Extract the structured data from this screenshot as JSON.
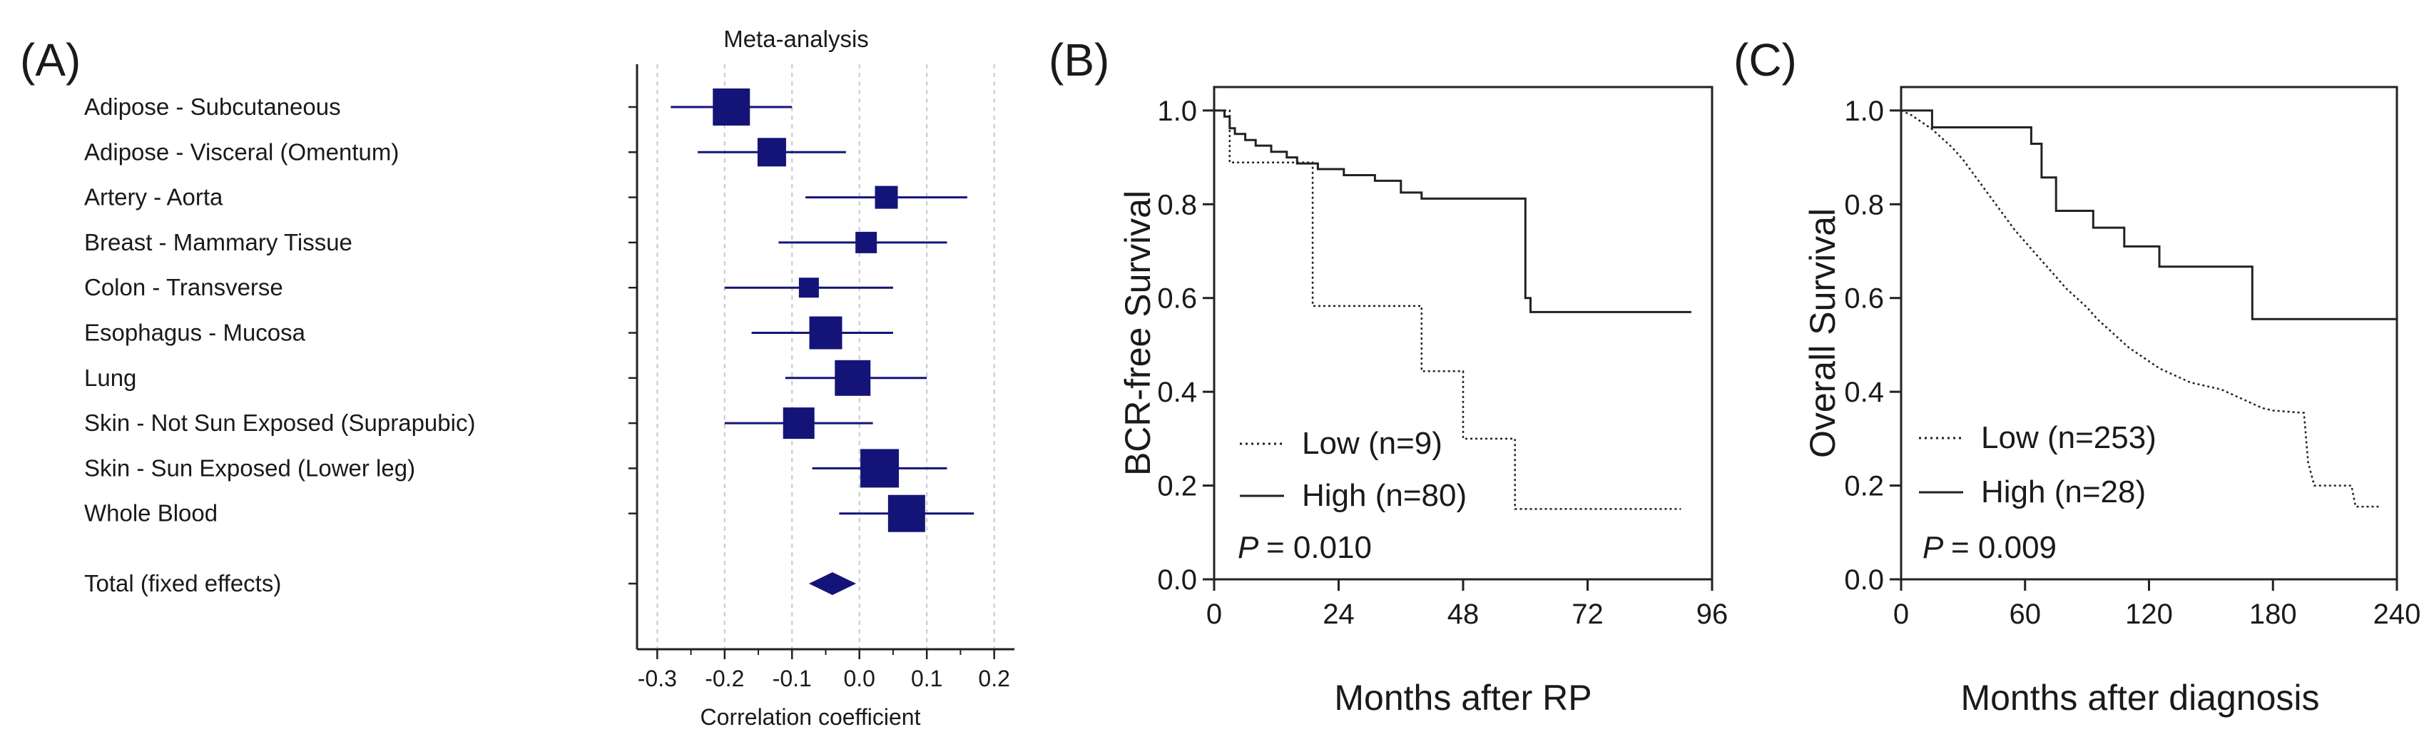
{
  "panels": {
    "a": "(A)",
    "b": "(B)",
    "c": "(C)"
  },
  "chart_data": [
    {
      "type": "forest",
      "title": "Meta-analysis",
      "xlabel": "Correlation coefficient",
      "xlim": [
        -0.33,
        0.23
      ],
      "xticks": [
        -0.3,
        -0.2,
        -0.1,
        0.0,
        0.1,
        0.2
      ],
      "xtick_labels": [
        "-0.3",
        "-0.2",
        "-0.1",
        "0.0",
        "0.1",
        "0.2"
      ],
      "gridlines": [
        -0.3,
        -0.2,
        -0.1,
        0.0,
        0.1,
        0.2
      ],
      "marker_color": "#141478",
      "rows": [
        {
          "label": "Adipose - Subcutaneous",
          "estimate": -0.19,
          "ci": [
            -0.28,
            -0.1
          ],
          "weight": 1.9
        },
        {
          "label": "Adipose - Visceral (Omentum)",
          "estimate": -0.13,
          "ci": [
            -0.24,
            -0.02
          ],
          "weight": 1.3
        },
        {
          "label": "Artery - Aorta",
          "estimate": 0.04,
          "ci": [
            -0.08,
            0.16
          ],
          "weight": 0.9
        },
        {
          "label": "Breast - Mammary Tissue",
          "estimate": 0.01,
          "ci": [
            -0.12,
            0.13
          ],
          "weight": 0.8
        },
        {
          "label": "Colon - Transverse",
          "estimate": -0.075,
          "ci": [
            -0.2,
            0.05
          ],
          "weight": 0.7
        },
        {
          "label": "Esophagus - Mucosa",
          "estimate": -0.05,
          "ci": [
            -0.16,
            0.05
          ],
          "weight": 1.6
        },
        {
          "label": "Lung",
          "estimate": -0.01,
          "ci": [
            -0.11,
            0.1
          ],
          "weight": 1.8
        },
        {
          "label": "Skin - Not Sun Exposed (Suprapubic)",
          "estimate": -0.09,
          "ci": [
            -0.2,
            0.02
          ],
          "weight": 1.5
        },
        {
          "label": "Skin - Sun Exposed (Lower leg)",
          "estimate": 0.03,
          "ci": [
            -0.07,
            0.13
          ],
          "weight": 2.0
        },
        {
          "label": "Whole Blood",
          "estimate": 0.07,
          "ci": [
            -0.03,
            0.17
          ],
          "weight": 1.9
        }
      ],
      "total": {
        "label": "Total (fixed effects)",
        "estimate": -0.04,
        "ci": [
          -0.075,
          -0.005
        ]
      }
    },
    {
      "type": "kaplan-meier",
      "xlabel": "Months after RP",
      "ylabel": "BCR-free Survival",
      "xlim": [
        0,
        96
      ],
      "ylim": [
        0,
        1.05
      ],
      "xticks": [
        0,
        24,
        48,
        72,
        96
      ],
      "xtick_labels": [
        "0",
        "24",
        "48",
        "72",
        "96"
      ],
      "yticks": [
        0,
        0.2,
        0.4,
        0.6,
        0.8,
        1.0
      ],
      "ytick_labels": [
        "0.0",
        "0.2",
        "0.4",
        "0.6",
        "0.8",
        "1.0"
      ],
      "series": [
        {
          "name": "Low (n=9)",
          "style": "dotted",
          "steps": [
            [
              0,
              1.0
            ],
            [
              3,
              1.0
            ],
            [
              3,
              0.889
            ],
            [
              19,
              0.889
            ],
            [
              19,
              0.583
            ],
            [
              40,
              0.583
            ],
            [
              40,
              0.444
            ],
            [
              48,
              0.444
            ],
            [
              48,
              0.3
            ],
            [
              58,
              0.3
            ],
            [
              58,
              0.15
            ],
            [
              90,
              0.15
            ]
          ]
        },
        {
          "name": "High (n=80)",
          "style": "solid",
          "steps": [
            [
              0,
              1.0
            ],
            [
              2,
              1.0
            ],
            [
              2,
              0.987
            ],
            [
              3,
              0.987
            ],
            [
              3,
              0.962
            ],
            [
              4,
              0.962
            ],
            [
              4,
              0.95
            ],
            [
              6,
              0.95
            ],
            [
              6,
              0.937
            ],
            [
              8,
              0.937
            ],
            [
              8,
              0.925
            ],
            [
              11,
              0.925
            ],
            [
              11,
              0.912
            ],
            [
              14,
              0.912
            ],
            [
              14,
              0.9
            ],
            [
              16,
              0.9
            ],
            [
              16,
              0.887
            ],
            [
              20,
              0.887
            ],
            [
              20,
              0.875
            ],
            [
              25,
              0.875
            ],
            [
              25,
              0.862
            ],
            [
              31,
              0.862
            ],
            [
              31,
              0.85
            ],
            [
              36,
              0.85
            ],
            [
              36,
              0.825
            ],
            [
              40,
              0.825
            ],
            [
              40,
              0.812
            ],
            [
              60,
              0.812
            ],
            [
              60,
              0.6
            ],
            [
              61,
              0.6
            ],
            [
              61,
              0.57
            ],
            [
              92,
              0.57
            ]
          ]
        }
      ],
      "annotation": {
        "p_label": "P",
        "p_value": "= 0.010"
      }
    },
    {
      "type": "kaplan-meier",
      "xlabel": "Months after diagnosis",
      "ylabel": "Overall Survival",
      "xlim": [
        0,
        240
      ],
      "ylim": [
        0,
        1.05
      ],
      "xticks": [
        0,
        60,
        120,
        180,
        240
      ],
      "xtick_labels": [
        "0",
        "60",
        "120",
        "180",
        "240"
      ],
      "yticks": [
        0,
        0.2,
        0.4,
        0.6,
        0.8,
        1.0
      ],
      "ytick_labels": [
        "0.0",
        "0.2",
        "0.4",
        "0.6",
        "0.8",
        "1.0"
      ],
      "series": [
        {
          "name": "Low (n=253)",
          "style": "dotted",
          "points": [
            [
              0,
              1.0
            ],
            [
              5,
              0.99
            ],
            [
              10,
              0.975
            ],
            [
              15,
              0.96
            ],
            [
              20,
              0.94
            ],
            [
              25,
              0.92
            ],
            [
              30,
              0.895
            ],
            [
              35,
              0.865
            ],
            [
              40,
              0.835
            ],
            [
              45,
              0.805
            ],
            [
              50,
              0.775
            ],
            [
              55,
              0.745
            ],
            [
              60,
              0.72
            ],
            [
              65,
              0.695
            ],
            [
              70,
              0.67
            ],
            [
              75,
              0.645
            ],
            [
              80,
              0.62
            ],
            [
              85,
              0.6
            ],
            [
              90,
              0.58
            ],
            [
              95,
              0.555
            ],
            [
              100,
              0.535
            ],
            [
              105,
              0.515
            ],
            [
              110,
              0.495
            ],
            [
              115,
              0.48
            ],
            [
              120,
              0.465
            ],
            [
              125,
              0.45
            ],
            [
              130,
              0.44
            ],
            [
              135,
              0.43
            ],
            [
              140,
              0.42
            ],
            [
              145,
              0.415
            ],
            [
              150,
              0.41
            ],
            [
              155,
              0.405
            ],
            [
              160,
              0.395
            ],
            [
              165,
              0.385
            ],
            [
              170,
              0.375
            ],
            [
              175,
              0.365
            ],
            [
              180,
              0.36
            ],
            [
              195,
              0.355
            ],
            [
              197,
              0.25
            ],
            [
              200,
              0.2
            ],
            [
              218,
              0.2
            ],
            [
              220,
              0.155
            ],
            [
              232,
              0.155
            ]
          ]
        },
        {
          "name": "High (n=28)",
          "style": "solid",
          "steps": [
            [
              0,
              1.0
            ],
            [
              15,
              1.0
            ],
            [
              15,
              0.964
            ],
            [
              63,
              0.964
            ],
            [
              63,
              0.929
            ],
            [
              68,
              0.929
            ],
            [
              68,
              0.857
            ],
            [
              75,
              0.857
            ],
            [
              75,
              0.786
            ],
            [
              93,
              0.786
            ],
            [
              93,
              0.75
            ],
            [
              108,
              0.75
            ],
            [
              108,
              0.71
            ],
            [
              125,
              0.71
            ],
            [
              125,
              0.667
            ],
            [
              170,
              0.667
            ],
            [
              170,
              0.555
            ],
            [
              240,
              0.555
            ]
          ]
        }
      ],
      "annotation": {
        "p_label": "P",
        "p_value": "= 0.009"
      }
    }
  ]
}
